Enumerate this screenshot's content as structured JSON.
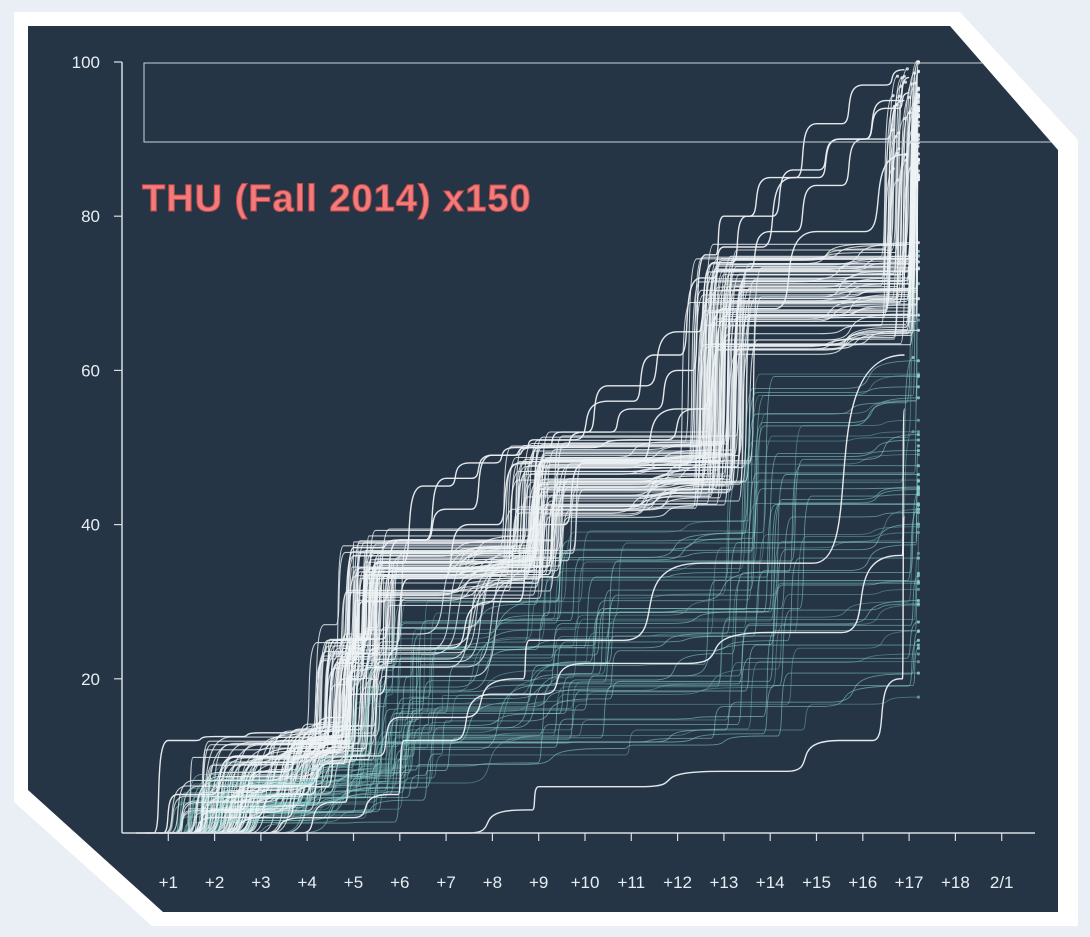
{
  "colors": {
    "panel": "#253545",
    "axis": "#d7dde3",
    "tick_text": "#e7edf2",
    "title": "#f47b7b",
    "line_bright": "#eef2f5",
    "line_teal": "#8fd8d4",
    "line_dim": "#6ea9aa"
  },
  "chart_data": {
    "type": "line",
    "title": "THU (Fall 2014) x150",
    "xlabel": "",
    "ylabel": "",
    "x_tick_labels": [
      "+1",
      "+2",
      "+3",
      "+4",
      "+5",
      "+6",
      "+7",
      "+8",
      "+9",
      "+10",
      "+11",
      "+12",
      "+13",
      "+14",
      "+15",
      "+16",
      "+17",
      "+18",
      "2/1"
    ],
    "y_ticks": [
      20,
      40,
      60,
      80,
      100
    ],
    "ylim": [
      0,
      100
    ],
    "xlim": [
      0,
      19.6
    ],
    "grid": false,
    "legend": "none",
    "step_levels": [
      12.5,
      25,
      37,
      50,
      75,
      100
    ],
    "series_count": 150,
    "representative_series": [
      {
        "x": [
          0.3,
          1.0,
          2.0,
          3.0,
          4.0,
          4.6,
          5.0,
          6.0,
          7.0,
          8.0,
          8.9,
          10.0,
          11.0,
          12.0,
          12.6,
          13.0,
          14.0,
          15.0,
          16.0,
          16.9
        ],
        "y": [
          0,
          12,
          12.5,
          13,
          13.5,
          25,
          37,
          38,
          42,
          49,
          50,
          52,
          55,
          60,
          75,
          80,
          85,
          92,
          97,
          99
        ]
      },
      {
        "x": [
          0.5,
          1.2,
          2.5,
          3.5,
          4.5,
          5.0,
          5.5,
          6.5,
          7.5,
          8.5,
          8.9,
          10.5,
          11.5,
          12.5,
          13.0,
          14.5,
          15.5,
          16.5,
          17.0
        ],
        "y": [
          0,
          5,
          10,
          12,
          15,
          25,
          35,
          45,
          48,
          50,
          51,
          56,
          62,
          72,
          76,
          85,
          90,
          95,
          98
        ]
      },
      {
        "x": [
          1.0,
          2.0,
          3.0,
          4.0,
          4.7,
          5.2,
          6.0,
          7.0,
          8.0,
          8.8,
          9.5,
          10.5,
          12.0,
          12.8,
          13.5,
          14.5,
          15.5,
          16.5,
          17.0
        ],
        "y": [
          0,
          3,
          8,
          12,
          22,
          30,
          38,
          46,
          49,
          50,
          52,
          58,
          65,
          74,
          80,
          86,
          90,
          94,
          96
        ]
      },
      {
        "x": [
          1.5,
          3.0,
          4.0,
          4.8,
          5.5,
          6.2,
          7.5,
          8.6,
          9.0,
          11.0,
          12.4,
          12.9,
          14.0,
          15.0,
          16.0,
          16.9
        ],
        "y": [
          0,
          2,
          6,
          20,
          24,
          33,
          40,
          48,
          50,
          51,
          55,
          73,
          78,
          84,
          90,
          95
        ]
      },
      {
        "x": [
          0.8,
          2.0,
          3.5,
          4.5,
          5.0,
          6.0,
          8.0,
          9.0,
          10.0,
          12.0,
          13.0,
          15.0,
          16.9
        ],
        "y": [
          0,
          2,
          5,
          9,
          18,
          24,
          30,
          40,
          48,
          55,
          68,
          78,
          88
        ]
      },
      {
        "x": [
          3.0,
          4.6,
          5.0,
          6.0,
          8.5,
          8.8,
          12.5,
          16.9
        ],
        "y": [
          0,
          4,
          10,
          15,
          20,
          25,
          35,
          62
        ]
      },
      {
        "x": [
          2.0,
          4.0,
          5.8,
          6.1,
          8.0,
          10.0,
          14.0,
          16.8,
          16.9
        ],
        "y": [
          0,
          2,
          5,
          12,
          18,
          22,
          26,
          36,
          55
        ]
      },
      {
        "x": [
          6.0,
          8.7,
          9.0,
          13.0,
          15.5,
          16.8,
          16.9
        ],
        "y": [
          0,
          3,
          6,
          8,
          12,
          20,
          41
        ]
      }
    ]
  }
}
